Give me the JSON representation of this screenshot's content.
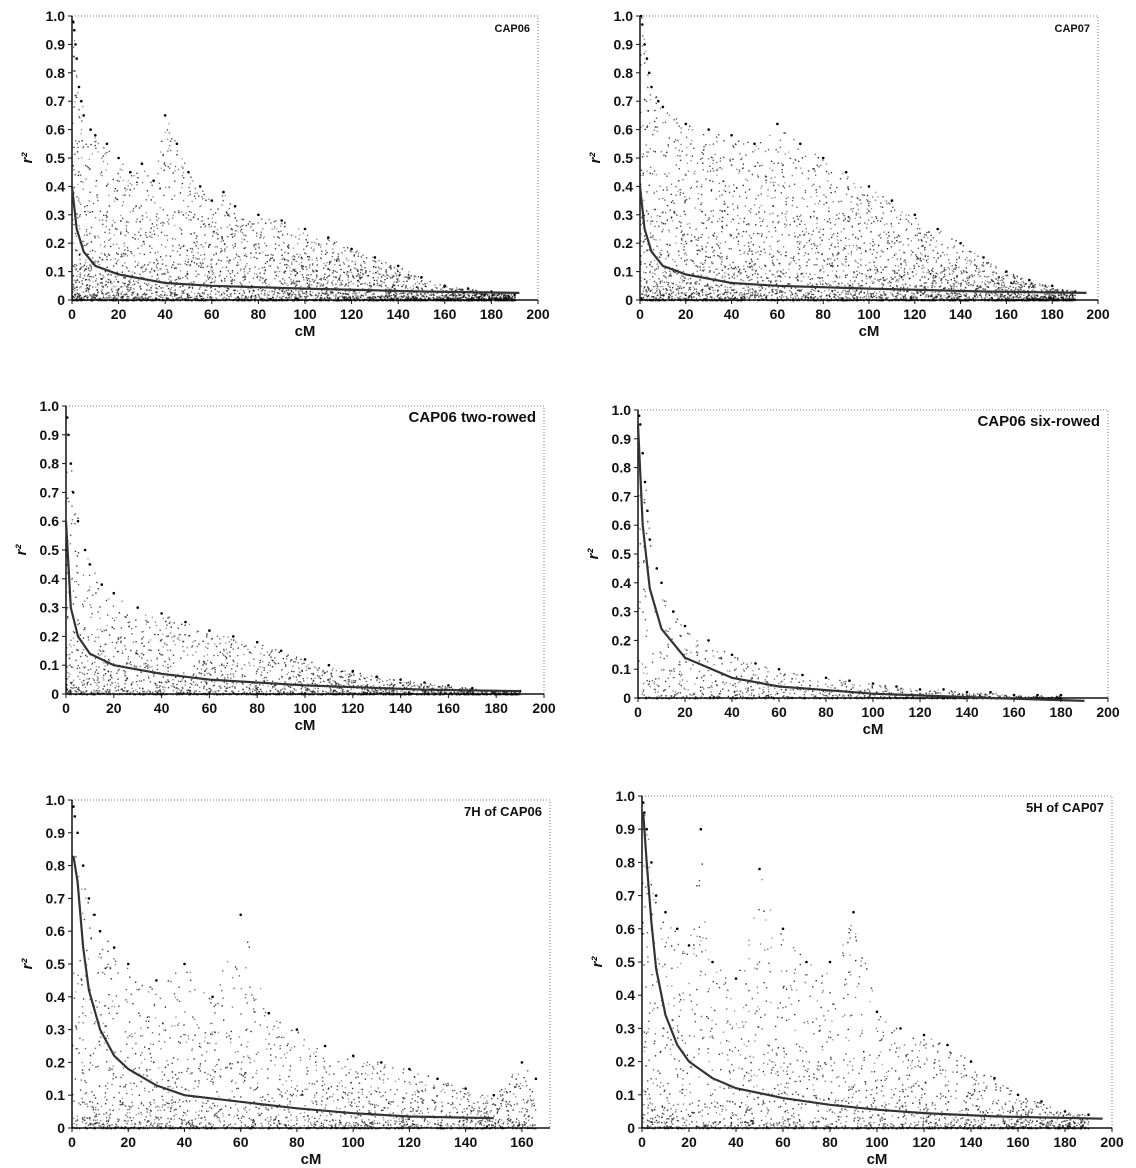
{
  "chart_data": [
    {
      "type": "scatter",
      "title": "CAP06",
      "xlabel": "cM",
      "ylabel": "r²",
      "xlim": [
        0,
        200
      ],
      "ylim": [
        0,
        1.0
      ],
      "xticks": [
        0,
        20,
        40,
        60,
        80,
        100,
        120,
        140,
        160,
        180,
        200
      ],
      "yticks": [
        0,
        0.1,
        0.2,
        0.3,
        0.4,
        0.5,
        0.6,
        0.7,
        0.8,
        0.9,
        1.0
      ],
      "density": "heavy",
      "points": [
        [
          0.5,
          0.98
        ],
        [
          1,
          0.95
        ],
        [
          1.5,
          0.9
        ],
        [
          2,
          0.85
        ],
        [
          3,
          0.75
        ],
        [
          4,
          0.7
        ],
        [
          5,
          0.65
        ],
        [
          8,
          0.6
        ],
        [
          10,
          0.58
        ],
        [
          15,
          0.55
        ],
        [
          20,
          0.5
        ],
        [
          25,
          0.45
        ],
        [
          30,
          0.48
        ],
        [
          35,
          0.42
        ],
        [
          40,
          0.65
        ],
        [
          45,
          0.55
        ],
        [
          50,
          0.45
        ],
        [
          55,
          0.4
        ],
        [
          60,
          0.35
        ],
        [
          65,
          0.38
        ],
        [
          70,
          0.33
        ],
        [
          80,
          0.3
        ],
        [
          90,
          0.28
        ],
        [
          100,
          0.25
        ],
        [
          110,
          0.22
        ],
        [
          120,
          0.18
        ],
        [
          130,
          0.15
        ],
        [
          140,
          0.12
        ],
        [
          150,
          0.08
        ],
        [
          160,
          0.05
        ],
        [
          170,
          0.04
        ],
        [
          180,
          0.03
        ],
        [
          190,
          0.02
        ]
      ],
      "trend": {
        "x": [
          0,
          2,
          5,
          10,
          20,
          40,
          60,
          100,
          150,
          192
        ],
        "y": [
          0.4,
          0.25,
          0.17,
          0.12,
          0.09,
          0.06,
          0.05,
          0.04,
          0.03,
          0.025
        ]
      }
    },
    {
      "type": "scatter",
      "title": "CAP07",
      "xlabel": "cM",
      "ylabel": "r²",
      "xlim": [
        0,
        200
      ],
      "ylim": [
        0,
        1.0
      ],
      "xticks": [
        0,
        20,
        40,
        60,
        80,
        100,
        120,
        140,
        160,
        180,
        200
      ],
      "yticks": [
        0,
        0.1,
        0.2,
        0.3,
        0.4,
        0.5,
        0.6,
        0.7,
        0.8,
        0.9,
        1.0
      ],
      "density": "heavy",
      "points": [
        [
          0.5,
          1.0
        ],
        [
          1,
          0.97
        ],
        [
          2,
          0.9
        ],
        [
          3,
          0.85
        ],
        [
          4,
          0.8
        ],
        [
          5,
          0.75
        ],
        [
          8,
          0.7
        ],
        [
          10,
          0.68
        ],
        [
          20,
          0.62
        ],
        [
          30,
          0.6
        ],
        [
          40,
          0.58
        ],
        [
          50,
          0.55
        ],
        [
          60,
          0.62
        ],
        [
          70,
          0.55
        ],
        [
          80,
          0.5
        ],
        [
          90,
          0.45
        ],
        [
          100,
          0.4
        ],
        [
          110,
          0.35
        ],
        [
          120,
          0.3
        ],
        [
          130,
          0.25
        ],
        [
          140,
          0.2
        ],
        [
          150,
          0.15
        ],
        [
          160,
          0.1
        ],
        [
          170,
          0.07
        ],
        [
          180,
          0.05
        ],
        [
          190,
          0.03
        ]
      ],
      "trend": {
        "x": [
          0,
          2,
          5,
          10,
          20,
          40,
          60,
          100,
          150,
          195
        ],
        "y": [
          0.4,
          0.25,
          0.17,
          0.12,
          0.09,
          0.06,
          0.05,
          0.04,
          0.03,
          0.025
        ]
      }
    },
    {
      "type": "scatter",
      "title": "CAP06 two-rowed",
      "xlabel": "cM",
      "ylabel": "r²",
      "xlim": [
        0,
        200
      ],
      "ylim": [
        0,
        1.0
      ],
      "xticks": [
        0,
        20,
        40,
        60,
        80,
        100,
        120,
        140,
        160,
        180,
        200
      ],
      "yticks": [
        0,
        0.1,
        0.2,
        0.3,
        0.4,
        0.5,
        0.6,
        0.7,
        0.8,
        0.9,
        1.0
      ],
      "density": "medium",
      "points": [
        [
          0.5,
          0.96
        ],
        [
          1,
          0.9
        ],
        [
          2,
          0.8
        ],
        [
          3,
          0.7
        ],
        [
          5,
          0.6
        ],
        [
          8,
          0.5
        ],
        [
          10,
          0.45
        ],
        [
          15,
          0.38
        ],
        [
          20,
          0.35
        ],
        [
          30,
          0.3
        ],
        [
          40,
          0.28
        ],
        [
          50,
          0.25
        ],
        [
          60,
          0.22
        ],
        [
          70,
          0.2
        ],
        [
          80,
          0.18
        ],
        [
          90,
          0.15
        ],
        [
          100,
          0.12
        ],
        [
          110,
          0.1
        ],
        [
          120,
          0.08
        ],
        [
          130,
          0.06
        ],
        [
          140,
          0.05
        ],
        [
          150,
          0.04
        ],
        [
          160,
          0.03
        ],
        [
          170,
          0.02
        ],
        [
          180,
          0.01
        ],
        [
          190,
          0.01
        ]
      ],
      "trend": {
        "x": [
          0,
          2,
          5,
          10,
          20,
          40,
          60,
          100,
          150,
          190
        ],
        "y": [
          0.6,
          0.3,
          0.2,
          0.14,
          0.1,
          0.07,
          0.05,
          0.03,
          0.015,
          0.01
        ]
      }
    },
    {
      "type": "scatter",
      "title": "CAP06 six-rowed",
      "xlabel": "cM",
      "ylabel": "r²",
      "xlim": [
        0,
        200
      ],
      "ylim": [
        0,
        1.0
      ],
      "xticks": [
        0,
        20,
        40,
        60,
        80,
        100,
        120,
        140,
        160,
        180,
        200
      ],
      "yticks": [
        0,
        0.1,
        0.2,
        0.3,
        0.4,
        0.5,
        0.6,
        0.7,
        0.8,
        0.9,
        1.0
      ],
      "density": "light",
      "points": [
        [
          0.5,
          0.98
        ],
        [
          1,
          0.95
        ],
        [
          2,
          0.85
        ],
        [
          3,
          0.75
        ],
        [
          4,
          0.65
        ],
        [
          5,
          0.55
        ],
        [
          8,
          0.45
        ],
        [
          10,
          0.4
        ],
        [
          15,
          0.3
        ],
        [
          20,
          0.25
        ],
        [
          30,
          0.2
        ],
        [
          40,
          0.15
        ],
        [
          50,
          0.12
        ],
        [
          60,
          0.1
        ],
        [
          70,
          0.08
        ],
        [
          80,
          0.07
        ],
        [
          90,
          0.06
        ],
        [
          100,
          0.05
        ],
        [
          110,
          0.04
        ],
        [
          120,
          0.03
        ],
        [
          130,
          0.03
        ],
        [
          140,
          0.02
        ],
        [
          150,
          0.02
        ],
        [
          160,
          0.01
        ],
        [
          170,
          0.01
        ],
        [
          180,
          0.01
        ]
      ],
      "trend": {
        "x": [
          0,
          2,
          5,
          10,
          20,
          40,
          60,
          100,
          150,
          190
        ],
        "y": [
          0.95,
          0.6,
          0.38,
          0.24,
          0.14,
          0.07,
          0.04,
          0.015,
          0.0,
          -0.01
        ]
      }
    },
    {
      "type": "scatter",
      "title": "7H of CAP06",
      "xlabel": "cM",
      "ylabel": "r²",
      "xlim": [
        0,
        170
      ],
      "ylim": [
        0,
        1.0
      ],
      "xticks": [
        0,
        20,
        40,
        60,
        80,
        100,
        120,
        140,
        160
      ],
      "yticks": [
        0,
        0.1,
        0.2,
        0.3,
        0.4,
        0.5,
        0.6,
        0.7,
        0.8,
        0.9,
        1.0
      ],
      "density": "medium",
      "points": [
        [
          0.5,
          0.98
        ],
        [
          1,
          0.95
        ],
        [
          2,
          0.9
        ],
        [
          4,
          0.8
        ],
        [
          6,
          0.7
        ],
        [
          8,
          0.65
        ],
        [
          10,
          0.6
        ],
        [
          15,
          0.55
        ],
        [
          20,
          0.5
        ],
        [
          30,
          0.45
        ],
        [
          40,
          0.5
        ],
        [
          50,
          0.4
        ],
        [
          60,
          0.65
        ],
        [
          70,
          0.35
        ],
        [
          80,
          0.3
        ],
        [
          90,
          0.25
        ],
        [
          100,
          0.22
        ],
        [
          110,
          0.2
        ],
        [
          120,
          0.18
        ],
        [
          130,
          0.15
        ],
        [
          140,
          0.12
        ],
        [
          150,
          0.1
        ],
        [
          160,
          0.2
        ],
        [
          165,
          0.15
        ]
      ],
      "trend": {
        "x": [
          0.5,
          2,
          4,
          6,
          10,
          15,
          20,
          30,
          40,
          60,
          80,
          100,
          120,
          150
        ],
        "y": [
          0.83,
          0.75,
          0.55,
          0.42,
          0.3,
          0.22,
          0.18,
          0.13,
          0.1,
          0.08,
          0.06,
          0.045,
          0.035,
          0.03
        ]
      }
    },
    {
      "type": "scatter",
      "title": "5H of CAP07",
      "xlabel": "cM",
      "ylabel": "r²",
      "xlim": [
        0,
        200
      ],
      "ylim": [
        0,
        1.0
      ],
      "xticks": [
        0,
        20,
        40,
        60,
        80,
        100,
        120,
        140,
        160,
        180,
        200
      ],
      "yticks": [
        0,
        0.1,
        0.2,
        0.3,
        0.4,
        0.5,
        0.6,
        0.7,
        0.8,
        0.9,
        1.0
      ],
      "density": "medium",
      "points": [
        [
          0.5,
          0.98
        ],
        [
          1,
          0.95
        ],
        [
          2,
          0.9
        ],
        [
          4,
          0.8
        ],
        [
          6,
          0.7
        ],
        [
          10,
          0.65
        ],
        [
          15,
          0.6
        ],
        [
          20,
          0.55
        ],
        [
          25,
          0.9
        ],
        [
          30,
          0.5
        ],
        [
          40,
          0.45
        ],
        [
          50,
          0.78
        ],
        [
          60,
          0.6
        ],
        [
          70,
          0.5
        ],
        [
          80,
          0.5
        ],
        [
          90,
          0.65
        ],
        [
          100,
          0.35
        ],
        [
          110,
          0.3
        ],
        [
          120,
          0.28
        ],
        [
          130,
          0.25
        ],
        [
          140,
          0.2
        ],
        [
          150,
          0.15
        ],
        [
          160,
          0.1
        ],
        [
          170,
          0.08
        ],
        [
          180,
          0.05
        ],
        [
          190,
          0.04
        ]
      ],
      "trend": {
        "x": [
          0.5,
          2,
          4,
          6,
          10,
          15,
          20,
          30,
          40,
          60,
          80,
          100,
          120,
          150,
          196
        ],
        "y": [
          0.95,
          0.8,
          0.62,
          0.48,
          0.34,
          0.25,
          0.2,
          0.15,
          0.12,
          0.09,
          0.07,
          0.055,
          0.045,
          0.035,
          0.028
        ]
      }
    }
  ]
}
